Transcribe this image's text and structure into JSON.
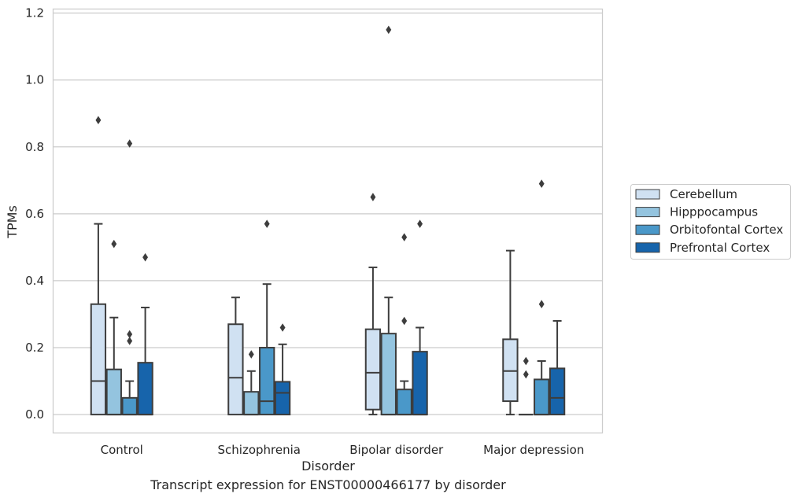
{
  "caption": "Transcript expression for ENST00000466177 by disorder",
  "chart_data": {
    "type": "box",
    "title": "",
    "xlabel": "Disorder",
    "ylabel": "TPMs",
    "categories": [
      "Control",
      "Schizophrenia",
      "Bipolar disorder",
      "Major depression"
    ],
    "ylim": [
      -0.055,
      1.212
    ],
    "yticks": [
      0.0,
      0.2,
      0.4,
      0.6,
      0.8,
      1.0,
      1.2
    ],
    "ytick_labels": [
      "0.0",
      "0.2",
      "0.4",
      "0.6",
      "0.8",
      "1.0",
      "1.2"
    ],
    "grid": "horizontal",
    "legend_position": "right",
    "series": [
      {
        "name": "Cerebellum",
        "color": "#d0e1f2",
        "boxes": [
          {
            "min": 0.0,
            "q1": 0.0,
            "median": 0.1,
            "q3": 0.33,
            "max": 0.57,
            "outliers": [
              0.88
            ]
          },
          {
            "min": 0.0,
            "q1": 0.0,
            "median": 0.11,
            "q3": 0.27,
            "max": 0.35,
            "outliers": []
          },
          {
            "min": 0.0,
            "q1": 0.015,
            "median": 0.125,
            "q3": 0.255,
            "max": 0.44,
            "outliers": [
              0.65
            ]
          },
          {
            "min": 0.0,
            "q1": 0.04,
            "median": 0.13,
            "q3": 0.225,
            "max": 0.49,
            "outliers": []
          }
        ]
      },
      {
        "name": "Hipppocampus",
        "color": "#94c4df",
        "boxes": [
          {
            "min": 0.0,
            "q1": 0.0,
            "median": 0.0,
            "q3": 0.135,
            "max": 0.29,
            "outliers": [
              0.51
            ]
          },
          {
            "min": 0.0,
            "q1": 0.0,
            "median": 0.0,
            "q3": 0.068,
            "max": 0.13,
            "outliers": [
              0.18
            ]
          },
          {
            "min": 0.0,
            "q1": 0.0,
            "median": 0.0,
            "q3": 0.242,
            "max": 0.35,
            "outliers": [
              1.15
            ]
          },
          {
            "min": 0.0,
            "q1": 0.0,
            "median": 0.0,
            "q3": 0.0,
            "max": 0.0,
            "outliers": [
              0.12,
              0.16
            ]
          }
        ]
      },
      {
        "name": "Orbitofontal Cortex",
        "color": "#4a98c9",
        "boxes": [
          {
            "min": 0.0,
            "q1": 0.0,
            "median": 0.0,
            "q3": 0.05,
            "max": 0.1,
            "outliers": [
              0.22,
              0.24,
              0.81
            ]
          },
          {
            "min": 0.0,
            "q1": 0.0,
            "median": 0.04,
            "q3": 0.2,
            "max": 0.39,
            "outliers": [
              0.57
            ]
          },
          {
            "min": 0.0,
            "q1": 0.0,
            "median": 0.0,
            "q3": 0.075,
            "max": 0.1,
            "outliers": [
              0.28,
              0.53
            ]
          },
          {
            "min": 0.0,
            "q1": 0.0,
            "median": 0.0,
            "q3": 0.105,
            "max": 0.16,
            "outliers": [
              0.33,
              0.69
            ]
          }
        ]
      },
      {
        "name": "Prefrontal Cortex",
        "color": "#1764ab",
        "boxes": [
          {
            "min": 0.0,
            "q1": 0.0,
            "median": 0.0,
            "q3": 0.155,
            "max": 0.32,
            "outliers": [
              0.47
            ]
          },
          {
            "min": 0.0,
            "q1": 0.0,
            "median": 0.065,
            "q3": 0.098,
            "max": 0.21,
            "outliers": [
              0.26
            ]
          },
          {
            "min": 0.0,
            "q1": 0.0,
            "median": 0.0,
            "q3": 0.188,
            "max": 0.26,
            "outliers": [
              0.57
            ]
          },
          {
            "min": 0.0,
            "q1": 0.0,
            "median": 0.05,
            "q3": 0.138,
            "max": 0.28,
            "outliers": []
          }
        ]
      }
    ]
  }
}
